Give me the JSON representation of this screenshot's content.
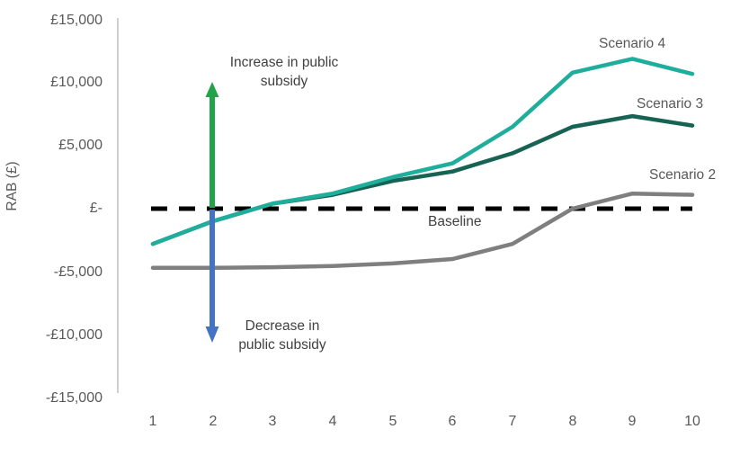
{
  "chart_data": {
    "type": "line",
    "title": "",
    "ylabel": "RAB (£)",
    "xlabel": "",
    "ylim": [
      -15000,
      15000
    ],
    "grid": false,
    "x": [
      1,
      2,
      3,
      4,
      5,
      6,
      7,
      8,
      9,
      10
    ],
    "x_ticks": [
      "1",
      "2",
      "3",
      "4",
      "5",
      "6",
      "7",
      "8",
      "9",
      "10"
    ],
    "y_ticks": [
      {
        "label": "£15,000",
        "value": 15000
      },
      {
        "label": "£10,000",
        "value": 10000
      },
      {
        "label": "£5,000",
        "value": 5000
      },
      {
        "label": "£-",
        "value": 0
      },
      {
        "label": "-£5,000",
        "value": -5000
      },
      {
        "label": "-£10,000",
        "value": -10000
      },
      {
        "label": "-£15,000",
        "value": -15000
      }
    ],
    "series": [
      {
        "name": "Scenario 4",
        "color": "#1FAE9B",
        "values": [
          -2800,
          -1000,
          400,
          1200,
          2500,
          3600,
          6500,
          10800,
          11900,
          10700
        ]
      },
      {
        "name": "Scenario 3",
        "color": "#166353",
        "values": [
          -2800,
          -1000,
          400,
          1100,
          2200,
          2950,
          4400,
          6500,
          7350,
          6600
        ]
      },
      {
        "name": "Scenario 2",
        "color": "#7F7F7F",
        "values": [
          -4700,
          -4700,
          -4650,
          -4550,
          -4350,
          -4000,
          -2800,
          0,
          1200,
          1100
        ]
      }
    ],
    "baseline": {
      "label": "Baseline",
      "value": 0,
      "color": "#000000"
    },
    "annotations": [
      {
        "id": "increase-arrow",
        "direction": "up",
        "arrow_color": "#21A347",
        "lines": [
          "Increase in public",
          "subsidy"
        ]
      },
      {
        "id": "decrease-arrow",
        "direction": "down",
        "arrow_color": "#4472C4",
        "lines": [
          "Decrease in",
          "public subsidy"
        ]
      }
    ],
    "axis_color": "#BFBFBF"
  }
}
